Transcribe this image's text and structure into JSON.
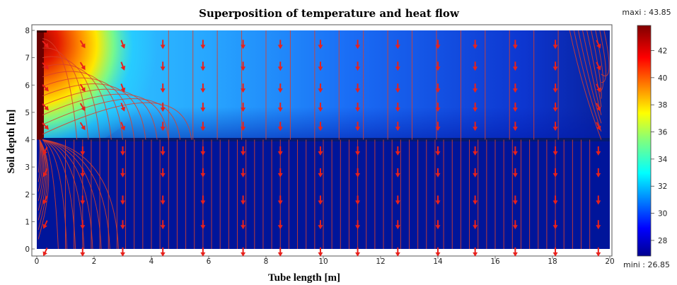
{
  "chart_data": {
    "type": "heatmap",
    "title": "Superposition of temperature and heat flow",
    "xlabel": "Tube length",
    "xlabel_unit": "[m]",
    "ylabel": "Soil depth",
    "ylabel_unit": "[m]",
    "xlim": [
      0,
      20
    ],
    "ylim": [
      0,
      8
    ],
    "x_ticks": [
      0,
      2,
      4,
      6,
      8,
      10,
      12,
      14,
      16,
      18,
      20
    ],
    "y_ticks": [
      0,
      1,
      2,
      3,
      4,
      5,
      6,
      7,
      8
    ],
    "colorbar": {
      "ticks": [
        28,
        30,
        32,
        34,
        36,
        38,
        40,
        42
      ],
      "max_label": "maxi : 43.85",
      "min_label": "mini : 26.85",
      "max_value": 43.85,
      "min_value": 26.85
    },
    "interface_depth": 4,
    "hot_source": {
      "x": 0,
      "y_range": [
        4,
        8
      ]
    },
    "flow_arrow_columns_x": [
      0.3,
      1.6,
      3.0,
      4.4,
      5.8,
      7.2,
      8.5,
      9.9,
      11.2,
      12.6,
      14.0,
      15.3,
      16.7,
      18.1,
      19.6
    ],
    "flow_arrow_rows_y": [
      7.5,
      6.7,
      5.9,
      5.2,
      4.5,
      3.6,
      2.8,
      1.8,
      0.9,
      -0.1
    ],
    "colors": {
      "arrow": "#e8211c",
      "streamline": "#d9402c",
      "interface": "#061a70",
      "background_cold": "#00159a"
    }
  }
}
